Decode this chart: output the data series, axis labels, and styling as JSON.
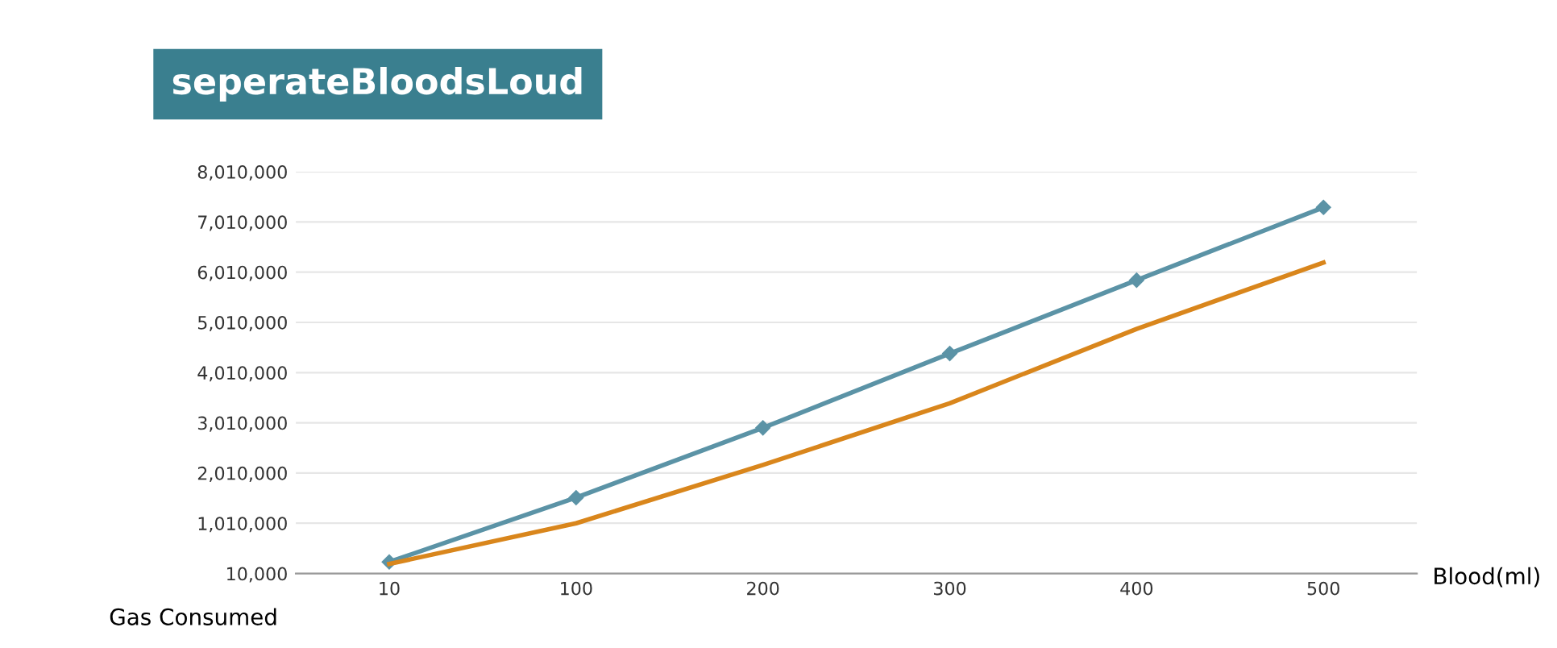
{
  "chart_data": {
    "type": "line",
    "title": "seperateBloodsLoud",
    "xlabel": "Blood(ml)",
    "ylabel": "Gas Consumed",
    "categories": [
      "10",
      "100",
      "200",
      "300",
      "400",
      "500"
    ],
    "series": [
      {
        "color": "#5b93a6",
        "marker": "diamond",
        "values": [
          240000,
          1520000,
          2910000,
          4390000,
          5850000,
          7300000
        ]
      },
      {
        "color": "#d9861c",
        "marker": "none",
        "values": [
          200000,
          1010000,
          2170000,
          3400000,
          4880000,
          6200000
        ]
      }
    ],
    "ylim": [
      10000,
      8010000
    ],
    "yticks": [
      {
        "value": 10000,
        "label": "10,000"
      },
      {
        "value": 1010000,
        "label": "1,010,000"
      },
      {
        "value": 2010000,
        "label": "2,010,000"
      },
      {
        "value": 3010000,
        "label": "3,010,000"
      },
      {
        "value": 4010000,
        "label": "4,010,000"
      },
      {
        "value": 5010000,
        "label": "5,010,000"
      },
      {
        "value": 6010000,
        "label": "6,010,000"
      },
      {
        "value": 7010000,
        "label": "7,010,000"
      },
      {
        "value": 8010000,
        "label": "8,010,000"
      }
    ],
    "grid": "y",
    "legend": false,
    "line_style": "solid"
  }
}
